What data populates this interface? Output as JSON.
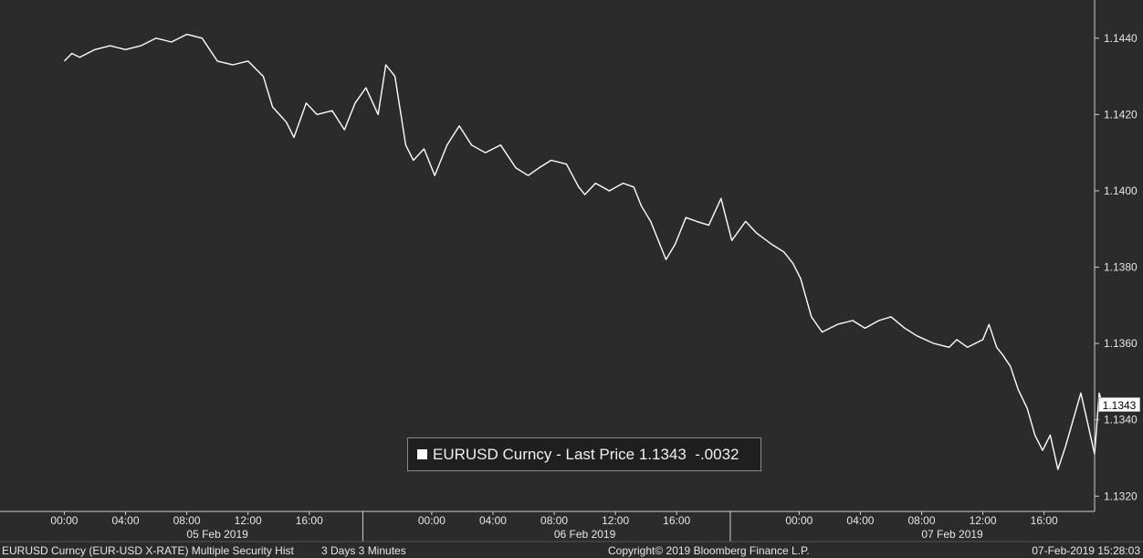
{
  "chart_data": {
    "type": "line",
    "ticker": "EURUSD Curncy",
    "series": [
      {
        "name": "EURUSD Curncy - Last Price",
        "color": "#ffffff",
        "points": [
          [
            0,
            1.1434
          ],
          [
            0.5,
            1.1436
          ],
          [
            1,
            1.1435
          ],
          [
            2,
            1.1437
          ],
          [
            3,
            1.1438
          ],
          [
            4,
            1.1437
          ],
          [
            5,
            1.1438
          ],
          [
            6,
            1.144
          ],
          [
            7,
            1.1439
          ],
          [
            8,
            1.1441
          ],
          [
            9,
            1.144
          ],
          [
            10,
            1.1434
          ],
          [
            11,
            1.1433
          ],
          [
            12,
            1.1434
          ],
          [
            13,
            1.143
          ],
          [
            13.6,
            1.1422
          ],
          [
            14.5,
            1.1418
          ],
          [
            15,
            1.1414
          ],
          [
            15.8,
            1.1423
          ],
          [
            16.5,
            1.142
          ],
          [
            17.5,
            1.1421
          ],
          [
            18.3,
            1.1416
          ],
          [
            19,
            1.1423
          ],
          [
            19.7,
            1.1427
          ],
          [
            20.5,
            1.142
          ],
          [
            21,
            1.1433
          ],
          [
            21.6,
            1.143
          ],
          [
            22.3,
            1.1412
          ],
          [
            22.8,
            1.1408
          ],
          [
            23.5,
            1.1411
          ],
          [
            24.2,
            1.1404
          ],
          [
            25,
            1.1412
          ],
          [
            25.8,
            1.1417
          ],
          [
            26.6,
            1.1412
          ],
          [
            27.5,
            1.141
          ],
          [
            28.5,
            1.1412
          ],
          [
            29.5,
            1.1406
          ],
          [
            30.3,
            1.1404
          ],
          [
            31,
            1.1406
          ],
          [
            31.8,
            1.1408
          ],
          [
            32.8,
            1.1407
          ],
          [
            33.6,
            1.1401
          ],
          [
            34,
            1.1399
          ],
          [
            34.7,
            1.1402
          ],
          [
            35.6,
            1.14
          ],
          [
            36.5,
            1.1402
          ],
          [
            37.2,
            1.1401
          ],
          [
            37.7,
            1.1396
          ],
          [
            38.3,
            1.1392
          ],
          [
            38.8,
            1.1387
          ],
          [
            39.3,
            1.1382
          ],
          [
            39.9,
            1.1386
          ],
          [
            40.6,
            1.1393
          ],
          [
            41.3,
            1.1392
          ],
          [
            42.1,
            1.1391
          ],
          [
            42.9,
            1.1398
          ],
          [
            43.6,
            1.1387
          ],
          [
            44.5,
            1.1392
          ],
          [
            45.2,
            1.1389
          ],
          [
            46.2,
            1.1386
          ],
          [
            47,
            1.1384
          ],
          [
            47.6,
            1.1381
          ],
          [
            48.1,
            1.1377
          ],
          [
            48.8,
            1.1367
          ],
          [
            49.5,
            1.1363
          ],
          [
            50.5,
            1.1365
          ],
          [
            51.5,
            1.1366
          ],
          [
            52.3,
            1.1364
          ],
          [
            53.2,
            1.1366
          ],
          [
            54,
            1.1367
          ],
          [
            54.9,
            1.1364
          ],
          [
            55.7,
            1.1362
          ],
          [
            56.8,
            1.136
          ],
          [
            57.8,
            1.1359
          ],
          [
            58.3,
            1.1361
          ],
          [
            59,
            1.1359
          ],
          [
            60,
            1.1361
          ],
          [
            60.4,
            1.1365
          ],
          [
            60.9,
            1.1359
          ],
          [
            61.3,
            1.1357
          ],
          [
            61.8,
            1.1354
          ],
          [
            62.3,
            1.1348
          ],
          [
            62.9,
            1.1343
          ],
          [
            63.4,
            1.1336
          ],
          [
            63.9,
            1.1332
          ],
          [
            64.4,
            1.1336
          ],
          [
            64.9,
            1.1327
          ],
          [
            65.4,
            1.1333
          ],
          [
            65.9,
            1.134
          ],
          [
            66.4,
            1.1347
          ],
          [
            66.8,
            1.134
          ],
          [
            67.3,
            1.1331
          ],
          [
            67.6,
            1.1347
          ],
          [
            67.9,
            1.1343
          ]
        ]
      }
    ],
    "x_axis": {
      "ticks": [
        {
          "x": 0,
          "label": "00:00"
        },
        {
          "x": 4,
          "label": "04:00"
        },
        {
          "x": 8,
          "label": "08:00"
        },
        {
          "x": 12,
          "label": "12:00"
        },
        {
          "x": 16,
          "label": "16:00"
        },
        {
          "x": 24,
          "label": "00:00"
        },
        {
          "x": 28,
          "label": "04:00"
        },
        {
          "x": 32,
          "label": "08:00"
        },
        {
          "x": 36,
          "label": "12:00"
        },
        {
          "x": 40,
          "label": "16:00"
        },
        {
          "x": 48,
          "label": "00:00"
        },
        {
          "x": 52,
          "label": "04:00"
        },
        {
          "x": 56,
          "label": "08:00"
        },
        {
          "x": 60,
          "label": "12:00"
        },
        {
          "x": 64,
          "label": "16:00"
        }
      ],
      "dates": [
        {
          "x": 10,
          "label": "05 Feb 2019"
        },
        {
          "x": 34,
          "label": "06 Feb 2019"
        },
        {
          "x": 58,
          "label": "07 Feb 2019"
        }
      ],
      "day_separators": [
        19.5,
        43.5
      ],
      "xlim": [
        -4.2,
        67.3
      ]
    },
    "y_axis": {
      "ticks": [
        "1.1440",
        "1.1420",
        "1.1400",
        "1.1380",
        "1.1360",
        "1.1340",
        "1.1320"
      ],
      "ylim": [
        1.1316,
        1.145
      ],
      "side": "right"
    },
    "last_price": "1.1343",
    "grid": false
  },
  "legend": {
    "ticker": "EURUSD Curncy",
    "dash": "-",
    "field": "Last Price",
    "last_value": "1.1343",
    "change": "-.0032"
  },
  "footer": {
    "left": "EURUSD Curncy (EUR-USD X-RATE) Multiple Security Hist",
    "period": "3 Days 3 Minutes",
    "copyright": "Copyright© 2019 Bloomberg Finance L.P.",
    "timestamp": "07-Feb-2019 15:28:03"
  },
  "colors": {
    "background": "#2b2b2b",
    "line": "#ffffff",
    "axis": "#cfcfcf"
  }
}
